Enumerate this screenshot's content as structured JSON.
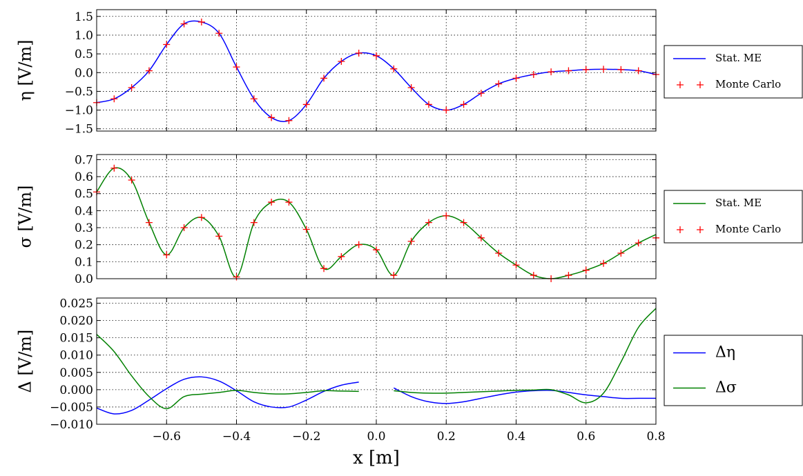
{
  "chart_data": [
    {
      "type": "line",
      "y_label": "η [V/m]",
      "grid": true,
      "legend": "outside right",
      "xlim": [
        -0.8,
        0.8
      ],
      "xticks": [
        -0.6,
        -0.4,
        -0.2,
        0,
        0.2,
        0.4,
        0.6,
        0.8
      ],
      "ylim": [
        -1.56,
        1.68
      ],
      "yticks": [
        1.5,
        {
          "value": 1,
          "label": "1.0"
        },
        0.5,
        {
          "value": 0,
          "label": "0.0"
        },
        {
          "value": -0.5,
          "label": "−0.5"
        },
        {
          "value": -1,
          "label": "−1.0"
        },
        {
          "value": -1.5,
          "label": "−1.5"
        }
      ],
      "x": [
        -0.8,
        -0.75,
        -0.7,
        -0.65,
        -0.6,
        -0.55,
        -0.5,
        -0.45,
        -0.4,
        -0.35,
        -0.3,
        -0.25,
        -0.2,
        -0.15,
        -0.1,
        -0.05,
        0,
        0.05,
        0.1,
        0.15,
        0.2,
        0.25,
        0.3,
        0.35,
        0.4,
        0.45,
        0.5,
        0.55,
        0.6,
        0.65,
        0.7,
        0.75,
        0.8
      ],
      "series": [
        {
          "name": "Stat. ME",
          "color": "#0000ff",
          "values": [
            -0.8,
            -0.7,
            -0.4,
            0.05,
            0.75,
            1.3,
            1.35,
            1.05,
            0.15,
            -0.7,
            -1.2,
            -1.28,
            -0.85,
            -0.15,
            0.3,
            0.52,
            0.45,
            0.1,
            -0.4,
            -0.85,
            -1.0,
            -0.85,
            -0.55,
            -0.3,
            -0.15,
            -0.05,
            0.02,
            0.05,
            0.08,
            0.09,
            0.08,
            0.05,
            -0.05
          ]
        },
        {
          "name": "Monte Carlo",
          "color": "#ff0000",
          "marker": "+",
          "values": [
            -0.8,
            -0.7,
            -0.4,
            0.05,
            0.75,
            1.3,
            1.35,
            1.05,
            0.15,
            -0.7,
            -1.2,
            -1.28,
            -0.85,
            -0.15,
            0.3,
            0.52,
            0.45,
            0.1,
            -0.4,
            -0.85,
            -1.0,
            -0.85,
            -0.55,
            -0.3,
            -0.15,
            -0.05,
            0.02,
            0.05,
            0.08,
            0.09,
            0.08,
            0.05,
            -0.05
          ]
        }
      ]
    },
    {
      "type": "line",
      "y_label": "σ [V/m]",
      "grid": true,
      "legend": "outside right",
      "xlim": [
        -0.8,
        0.8
      ],
      "xticks": [
        -0.6,
        -0.4,
        -0.2,
        0,
        0.2,
        0.4,
        0.6,
        0.8
      ],
      "ylim": [
        0,
        0.73
      ],
      "yticks": [
        0.7,
        0.6,
        0.5,
        0.4,
        0.3,
        0.2,
        0.1,
        {
          "value": 0,
          "label": "0.0"
        }
      ],
      "x": [
        -0.8,
        -0.75,
        -0.7,
        -0.65,
        -0.6,
        -0.55,
        -0.5,
        -0.45,
        -0.4,
        -0.35,
        -0.3,
        -0.25,
        -0.2,
        -0.15,
        -0.1,
        -0.05,
        0,
        0.05,
        0.1,
        0.15,
        0.2,
        0.25,
        0.3,
        0.35,
        0.4,
        0.45,
        0.5,
        0.55,
        0.6,
        0.65,
        0.7,
        0.75,
        0.8
      ],
      "series": [
        {
          "name": "Stat. ME",
          "color": "#008000",
          "values": [
            0.51,
            0.65,
            0.58,
            0.33,
            0.14,
            0.3,
            0.36,
            0.25,
            0.01,
            0.33,
            0.45,
            0.45,
            0.29,
            0.06,
            0.13,
            0.2,
            0.17,
            0.02,
            0.22,
            0.33,
            0.37,
            0.33,
            0.24,
            0.15,
            0.08,
            0.02,
            0,
            0.02,
            0.05,
            0.09,
            0.15,
            0.21,
            0.26
          ]
        },
        {
          "name": "Monte Carlo",
          "color": "#ff0000",
          "marker": "+",
          "values": [
            0.51,
            0.65,
            0.58,
            0.33,
            0.14,
            0.3,
            0.36,
            0.25,
            0.01,
            0.33,
            0.45,
            0.45,
            0.29,
            0.06,
            0.13,
            0.2,
            0.17,
            0.02,
            0.22,
            0.33,
            0.37,
            0.33,
            0.24,
            0.15,
            0.08,
            0.02,
            0,
            0.02,
            0.05,
            0.09,
            0.15,
            0.21,
            0.24
          ]
        }
      ]
    },
    {
      "type": "line",
      "y_label": "Δ [V/m]",
      "x_label": "x [m]",
      "grid": true,
      "legend": "outside right",
      "xlim": [
        -0.8,
        0.8
      ],
      "xticks": [
        {
          "value": -0.6,
          "label": "−0.6"
        },
        {
          "value": -0.4,
          "label": "−0.4"
        },
        {
          "value": -0.2,
          "label": "−0.2"
        },
        {
          "value": 0,
          "label": "0.0"
        },
        0.2,
        0.4,
        0.6,
        0.8
      ],
      "ylim": [
        -0.01,
        0.0265
      ],
      "yticks": [
        0.025,
        {
          "value": 0.02,
          "label": "0.020"
        },
        0.015,
        {
          "value": 0.01,
          "label": "0.010"
        },
        0.005,
        {
          "value": 0,
          "label": "0.000"
        },
        {
          "value": -0.005,
          "label": "−0.005"
        },
        {
          "value": -0.01,
          "label": "−0.010"
        }
      ],
      "x": [
        -0.8,
        -0.75,
        -0.7,
        -0.65,
        -0.6,
        -0.55,
        -0.5,
        -0.45,
        -0.4,
        -0.35,
        -0.3,
        -0.25,
        -0.2,
        -0.15,
        -0.1,
        -0.05,
        0,
        0.05,
        0.1,
        0.15,
        0.2,
        0.25,
        0.3,
        0.35,
        0.4,
        0.45,
        0.5,
        0.55,
        0.6,
        0.65,
        0.7,
        0.75,
        0.8
      ],
      "series": [
        {
          "name": "Δη",
          "color": "#0000ff",
          "values": [
            -0.0053,
            -0.007,
            -0.006,
            -0.003,
            0.0003,
            0.003,
            0.0037,
            0.0025,
            -0.0003,
            -0.0035,
            -0.005,
            -0.005,
            -0.003,
            -0.0005,
            0.0013,
            0.0022,
            null,
            0.0005,
            -0.002,
            -0.0035,
            -0.004,
            -0.0035,
            -0.0025,
            -0.0015,
            -0.0007,
            -0.0003,
            -0.0002,
            -0.0008,
            -0.0015,
            -0.002,
            -0.0025,
            -0.0025,
            -0.0025
          ]
        },
        {
          "name": "Δσ",
          "color": "#008000",
          "values": [
            0.016,
            0.011,
            0.004,
            -0.002,
            -0.0055,
            -0.002,
            -0.0013,
            -0.0008,
            -0.0002,
            -0.0008,
            -0.0012,
            -0.0012,
            -0.0008,
            -0.0003,
            -0.0004,
            -0.0005,
            null,
            -0.0003,
            -0.0008,
            -0.001,
            -0.001,
            -0.0008,
            -0.0006,
            -0.0004,
            -0.0002,
            -0.0001,
            0,
            -0.0015,
            -0.0038,
            -0.001,
            0.008,
            0.018,
            0.0235
          ]
        }
      ]
    }
  ]
}
